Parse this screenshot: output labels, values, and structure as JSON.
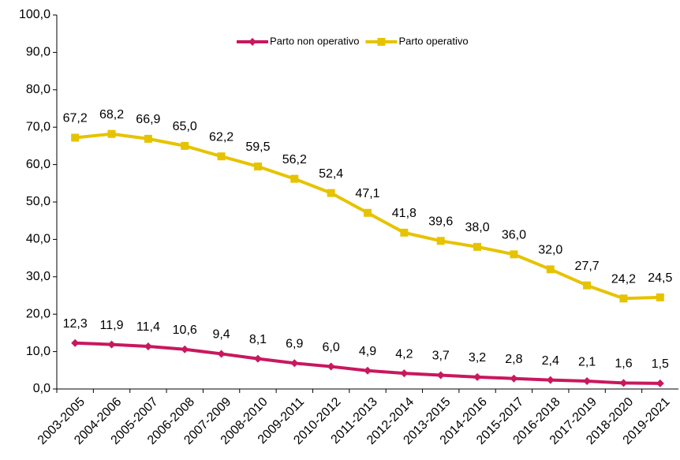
{
  "chart_data": {
    "type": "line",
    "categories": [
      "2003-2005",
      "2004-2006",
      "2005-2007",
      "2006-2008",
      "2007-2009",
      "2008-2010",
      "2009-2011",
      "2010-2012",
      "2011-2013",
      "2012-2014",
      "2013-2015",
      "2014-2016",
      "2015-2017",
      "2016-2018",
      "2017-2019",
      "2018-2020",
      "2019-2021"
    ],
    "series": [
      {
        "name": "Parto non operativo",
        "color": "#c8185e",
        "marker": "diamond",
        "values": [
          12.3,
          11.9,
          11.4,
          10.6,
          9.4,
          8.1,
          6.9,
          6.0,
          4.9,
          4.2,
          3.7,
          3.2,
          2.8,
          2.4,
          2.1,
          1.6,
          1.5
        ],
        "value_labels": [
          "12,3",
          "11,9",
          "11,4",
          "10,6",
          "9,4",
          "8,1",
          "6,9",
          "6,0",
          "4,9",
          "4,2",
          "3,7",
          "3,2",
          "2,8",
          "2,4",
          "2,1",
          "1,6",
          "1,5"
        ]
      },
      {
        "name": "Parto operativo",
        "color": "#e6c300",
        "marker": "square",
        "values": [
          67.2,
          68.2,
          66.9,
          65.0,
          62.2,
          59.5,
          56.2,
          52.4,
          47.1,
          41.8,
          39.6,
          38.0,
          36.0,
          32.0,
          27.7,
          24.2,
          24.5
        ],
        "value_labels": [
          "67,2",
          "68,2",
          "66,9",
          "65,0",
          "62,2",
          "59,5",
          "56,2",
          "52,4",
          "47,1",
          "41,8",
          "39,6",
          "38,0",
          "36,0",
          "32,0",
          "27,7",
          "24,2",
          "24,5"
        ]
      }
    ],
    "ylim": [
      0,
      100
    ],
    "yticks": [
      {
        "value": 0,
        "label": "0,0"
      },
      {
        "value": 10,
        "label": "10,0"
      },
      {
        "value": 20,
        "label": "20,0"
      },
      {
        "value": 30,
        "label": "30,0"
      },
      {
        "value": 40,
        "label": "40,0"
      },
      {
        "value": 50,
        "label": "50,0"
      },
      {
        "value": 60,
        "label": "60,0"
      },
      {
        "value": 70,
        "label": "70,0"
      },
      {
        "value": 80,
        "label": "80,0"
      },
      {
        "value": 90,
        "label": "90,0"
      },
      {
        "value": 100,
        "label": "100,0"
      }
    ],
    "grid": false,
    "legend": "top"
  }
}
